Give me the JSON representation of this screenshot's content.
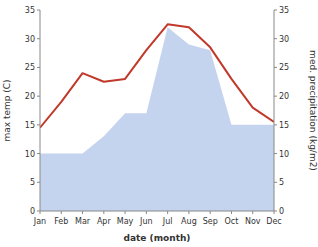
{
  "chart_data": {
    "type": "line",
    "xlabel": "date (month)",
    "ylabel": "max temp (C)",
    "y2label": "med. precipitation (kg/m2)",
    "categories": [
      "Jan",
      "Feb",
      "Mar",
      "Apr",
      "May",
      "Jun",
      "Jul",
      "Aug",
      "Sep",
      "Oct",
      "Nov",
      "Dec"
    ],
    "series": [
      {
        "type": "area",
        "axis": "y2",
        "color": "#c5d4ee",
        "values": [
          10.0,
          10.0,
          10.0,
          13.0,
          17.0,
          17.0,
          32.0,
          29.0,
          28.0,
          15.0,
          15.0,
          15.0
        ]
      },
      {
        "type": "line",
        "color": "#c0392b",
        "values": [
          14.5,
          19.0,
          24.0,
          22.5,
          23.0,
          28.0,
          32.5,
          32.0,
          28.5,
          23.0,
          18.0,
          15.5
        ]
      }
    ],
    "ylim": [
      0,
      35
    ],
    "yticks": [
      0,
      5,
      10,
      15,
      20,
      25,
      30,
      35
    ],
    "y2lim": [
      0,
      35
    ],
    "y2ticks": [
      0,
      5,
      10,
      15,
      20,
      25,
      30,
      35
    ],
    "grid": false
  }
}
